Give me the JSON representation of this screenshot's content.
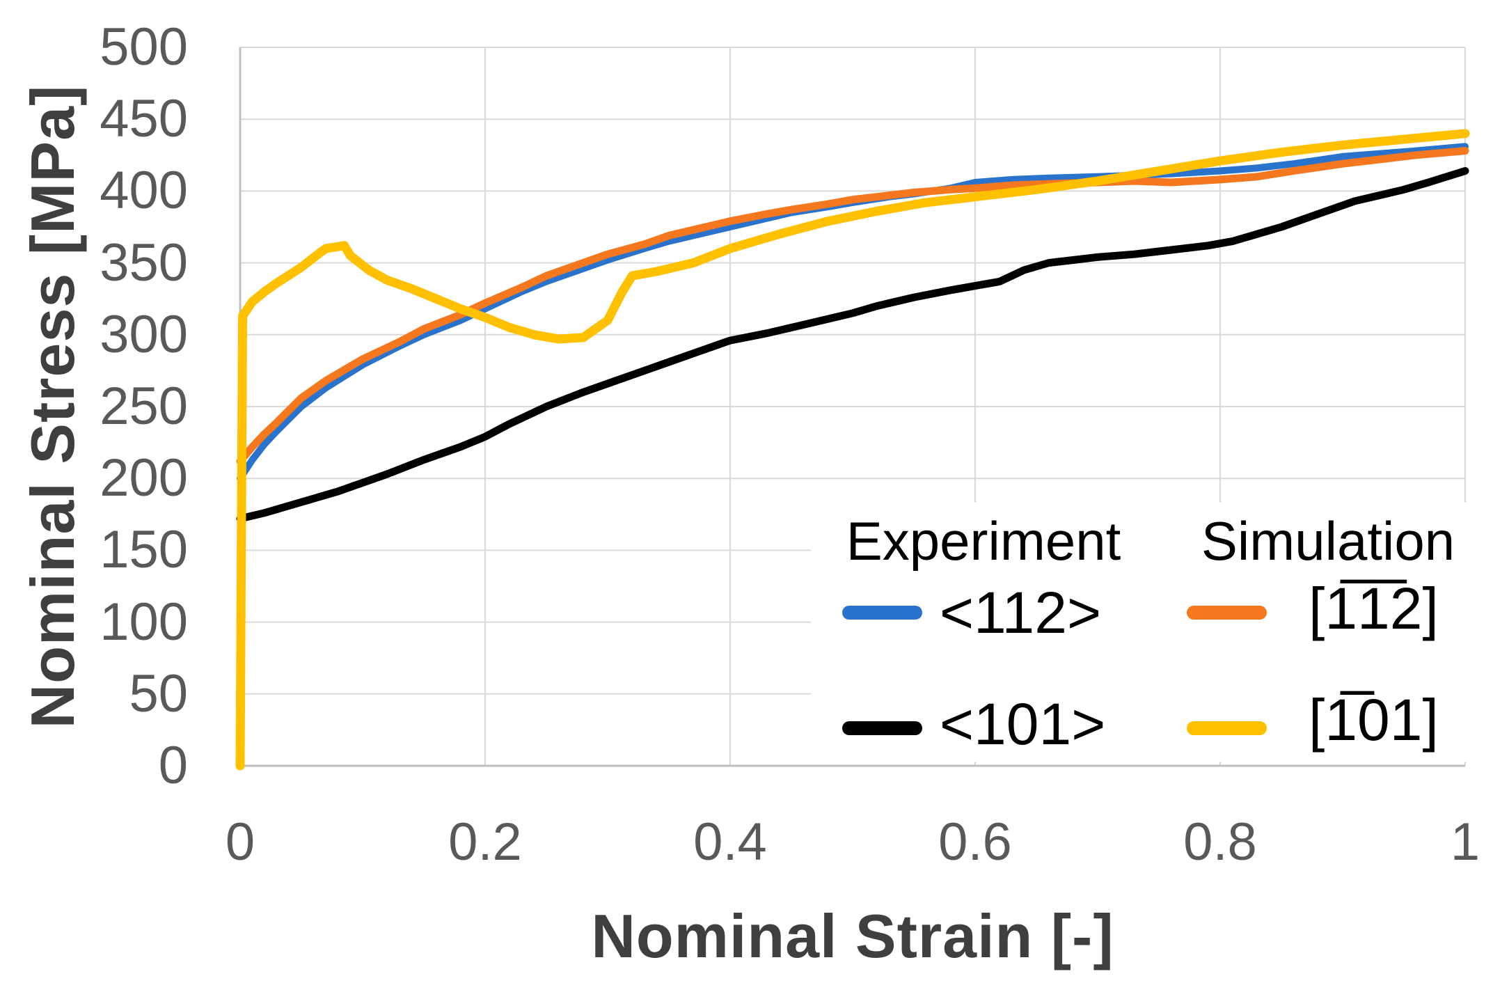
{
  "figure": {
    "x_title": "Nominal Strain [-]",
    "y_title": "Nominal Stress [MPa]"
  },
  "legend": {
    "columns": [
      {
        "header": "Experiment",
        "items": [
          {
            "label": "<112>",
            "series": "exp-112"
          },
          {
            "label": "<101>",
            "series": "exp-101"
          }
        ]
      },
      {
        "header": "Simulation",
        "items": [
          {
            "label": "[1̅1̅2]",
            "series": "sim-112"
          },
          {
            "label": "[1̅01]",
            "series": "sim-101"
          }
        ]
      }
    ]
  },
  "chart_data": {
    "type": "line",
    "title": "",
    "xlabel": "Nominal Strain [-]",
    "ylabel": "Nominal Stress [MPa]",
    "xlim": [
      0,
      1
    ],
    "ylim": [
      0,
      500
    ],
    "grid": true,
    "legend_position": "inside-bottom-right",
    "x_ticks": [
      0,
      0.2,
      0.4,
      0.6,
      0.8,
      1
    ],
    "x_tick_labels": [
      "0",
      "0.2",
      "0.4",
      "0.6",
      "0.8",
      "1"
    ],
    "y_ticks": [
      0,
      50,
      100,
      150,
      200,
      250,
      300,
      350,
      400,
      450,
      500
    ],
    "y_tick_labels": [
      "0",
      "50",
      "100",
      "150",
      "200",
      "250",
      "300",
      "350",
      "400",
      "450",
      "500"
    ],
    "colors": {
      "grid": "#D9D9D9",
      "axis": "#BFBFBF",
      "tick_text": "#595959",
      "title_text": "#3F3F3F"
    },
    "draw_order": [
      "exp-101",
      "exp-112",
      "sim-112",
      "sim-101"
    ],
    "series": [
      {
        "id": "exp-112",
        "group": "Experiment",
        "name": "<112>",
        "color": "#2A73CC",
        "stroke_width": 10,
        "points": [
          [
            0,
            200
          ],
          [
            0.01,
            213
          ],
          [
            0.02,
            224
          ],
          [
            0.03,
            233
          ],
          [
            0.05,
            250
          ],
          [
            0.07,
            263
          ],
          [
            0.1,
            279
          ],
          [
            0.13,
            292
          ],
          [
            0.15,
            300
          ],
          [
            0.18,
            310
          ],
          [
            0.2,
            318
          ],
          [
            0.23,
            330
          ],
          [
            0.25,
            337
          ],
          [
            0.28,
            346
          ],
          [
            0.3,
            352
          ],
          [
            0.33,
            360
          ],
          [
            0.35,
            365
          ],
          [
            0.38,
            371
          ],
          [
            0.4,
            375
          ],
          [
            0.43,
            381
          ],
          [
            0.45,
            385
          ],
          [
            0.48,
            389
          ],
          [
            0.5,
            392
          ],
          [
            0.53,
            396
          ],
          [
            0.55,
            398
          ],
          [
            0.58,
            402
          ],
          [
            0.6,
            406
          ],
          [
            0.63,
            408
          ],
          [
            0.66,
            409
          ],
          [
            0.7,
            410
          ],
          [
            0.73,
            411
          ],
          [
            0.76,
            412
          ],
          [
            0.8,
            414
          ],
          [
            0.83,
            416
          ],
          [
            0.86,
            419
          ],
          [
            0.9,
            424
          ],
          [
            0.93,
            426
          ],
          [
            0.96,
            428
          ],
          [
            1.0,
            431
          ]
        ]
      },
      {
        "id": "exp-101",
        "group": "Experiment",
        "name": "<101>",
        "color": "#000000",
        "stroke_width": 11,
        "points": [
          [
            0,
            172
          ],
          [
            0.02,
            176
          ],
          [
            0.04,
            181
          ],
          [
            0.06,
            186
          ],
          [
            0.08,
            191
          ],
          [
            0.1,
            197
          ],
          [
            0.12,
            203
          ],
          [
            0.15,
            213
          ],
          [
            0.18,
            222
          ],
          [
            0.2,
            229
          ],
          [
            0.22,
            238
          ],
          [
            0.25,
            250
          ],
          [
            0.28,
            260
          ],
          [
            0.3,
            266
          ],
          [
            0.33,
            275
          ],
          [
            0.35,
            281
          ],
          [
            0.38,
            290
          ],
          [
            0.4,
            296
          ],
          [
            0.43,
            301
          ],
          [
            0.45,
            305
          ],
          [
            0.48,
            311
          ],
          [
            0.5,
            315
          ],
          [
            0.52,
            320
          ],
          [
            0.55,
            326
          ],
          [
            0.58,
            331
          ],
          [
            0.6,
            334
          ],
          [
            0.62,
            337
          ],
          [
            0.64,
            345
          ],
          [
            0.66,
            350
          ],
          [
            0.68,
            352
          ],
          [
            0.7,
            354
          ],
          [
            0.73,
            356
          ],
          [
            0.76,
            359
          ],
          [
            0.79,
            362
          ],
          [
            0.81,
            365
          ],
          [
            0.83,
            370
          ],
          [
            0.85,
            375
          ],
          [
            0.87,
            381
          ],
          [
            0.89,
            387
          ],
          [
            0.91,
            393
          ],
          [
            0.93,
            397
          ],
          [
            0.95,
            401
          ],
          [
            0.97,
            406
          ],
          [
            1.0,
            414
          ]
        ]
      },
      {
        "id": "sim-112",
        "group": "Simulation",
        "name": "[1̅1̅2]",
        "color": "#F5771E",
        "stroke_width": 11,
        "points": [
          [
            0,
            212
          ],
          [
            0.01,
            222
          ],
          [
            0.02,
            231
          ],
          [
            0.03,
            239
          ],
          [
            0.05,
            256
          ],
          [
            0.07,
            268
          ],
          [
            0.1,
            283
          ],
          [
            0.13,
            295
          ],
          [
            0.15,
            304
          ],
          [
            0.18,
            314
          ],
          [
            0.2,
            322
          ],
          [
            0.23,
            333
          ],
          [
            0.25,
            341
          ],
          [
            0.28,
            350
          ],
          [
            0.3,
            356
          ],
          [
            0.33,
            363
          ],
          [
            0.35,
            369
          ],
          [
            0.38,
            375
          ],
          [
            0.4,
            379
          ],
          [
            0.43,
            384
          ],
          [
            0.45,
            387
          ],
          [
            0.48,
            391
          ],
          [
            0.5,
            394
          ],
          [
            0.53,
            397
          ],
          [
            0.55,
            399
          ],
          [
            0.58,
            401
          ],
          [
            0.6,
            402
          ],
          [
            0.63,
            404
          ],
          [
            0.66,
            405
          ],
          [
            0.7,
            406
          ],
          [
            0.73,
            407
          ],
          [
            0.76,
            406
          ],
          [
            0.8,
            408
          ],
          [
            0.83,
            410
          ],
          [
            0.86,
            414
          ],
          [
            0.9,
            419
          ],
          [
            0.93,
            422
          ],
          [
            0.96,
            425
          ],
          [
            1.0,
            428
          ]
        ]
      },
      {
        "id": "sim-101",
        "group": "Simulation",
        "name": "[1̅01]",
        "color": "#FFC000",
        "stroke_width": 13,
        "points": [
          [
            0,
            0
          ],
          [
            0.002,
            313
          ],
          [
            0.01,
            323
          ],
          [
            0.02,
            330
          ],
          [
            0.03,
            336
          ],
          [
            0.05,
            347
          ],
          [
            0.065,
            357
          ],
          [
            0.07,
            360
          ],
          [
            0.085,
            362
          ],
          [
            0.09,
            355
          ],
          [
            0.105,
            345
          ],
          [
            0.12,
            338
          ],
          [
            0.14,
            332
          ],
          [
            0.16,
            325
          ],
          [
            0.18,
            318
          ],
          [
            0.2,
            312
          ],
          [
            0.22,
            305
          ],
          [
            0.24,
            300
          ],
          [
            0.26,
            297
          ],
          [
            0.28,
            298
          ],
          [
            0.3,
            310
          ],
          [
            0.312,
            330
          ],
          [
            0.32,
            341
          ],
          [
            0.34,
            344
          ],
          [
            0.37,
            350
          ],
          [
            0.4,
            360
          ],
          [
            0.44,
            370
          ],
          [
            0.48,
            379
          ],
          [
            0.52,
            386
          ],
          [
            0.56,
            392
          ],
          [
            0.6,
            396
          ],
          [
            0.65,
            401
          ],
          [
            0.7,
            407
          ],
          [
            0.75,
            414
          ],
          [
            0.8,
            421
          ],
          [
            0.85,
            427
          ],
          [
            0.9,
            432
          ],
          [
            0.95,
            436
          ],
          [
            1.0,
            440
          ]
        ]
      }
    ]
  }
}
